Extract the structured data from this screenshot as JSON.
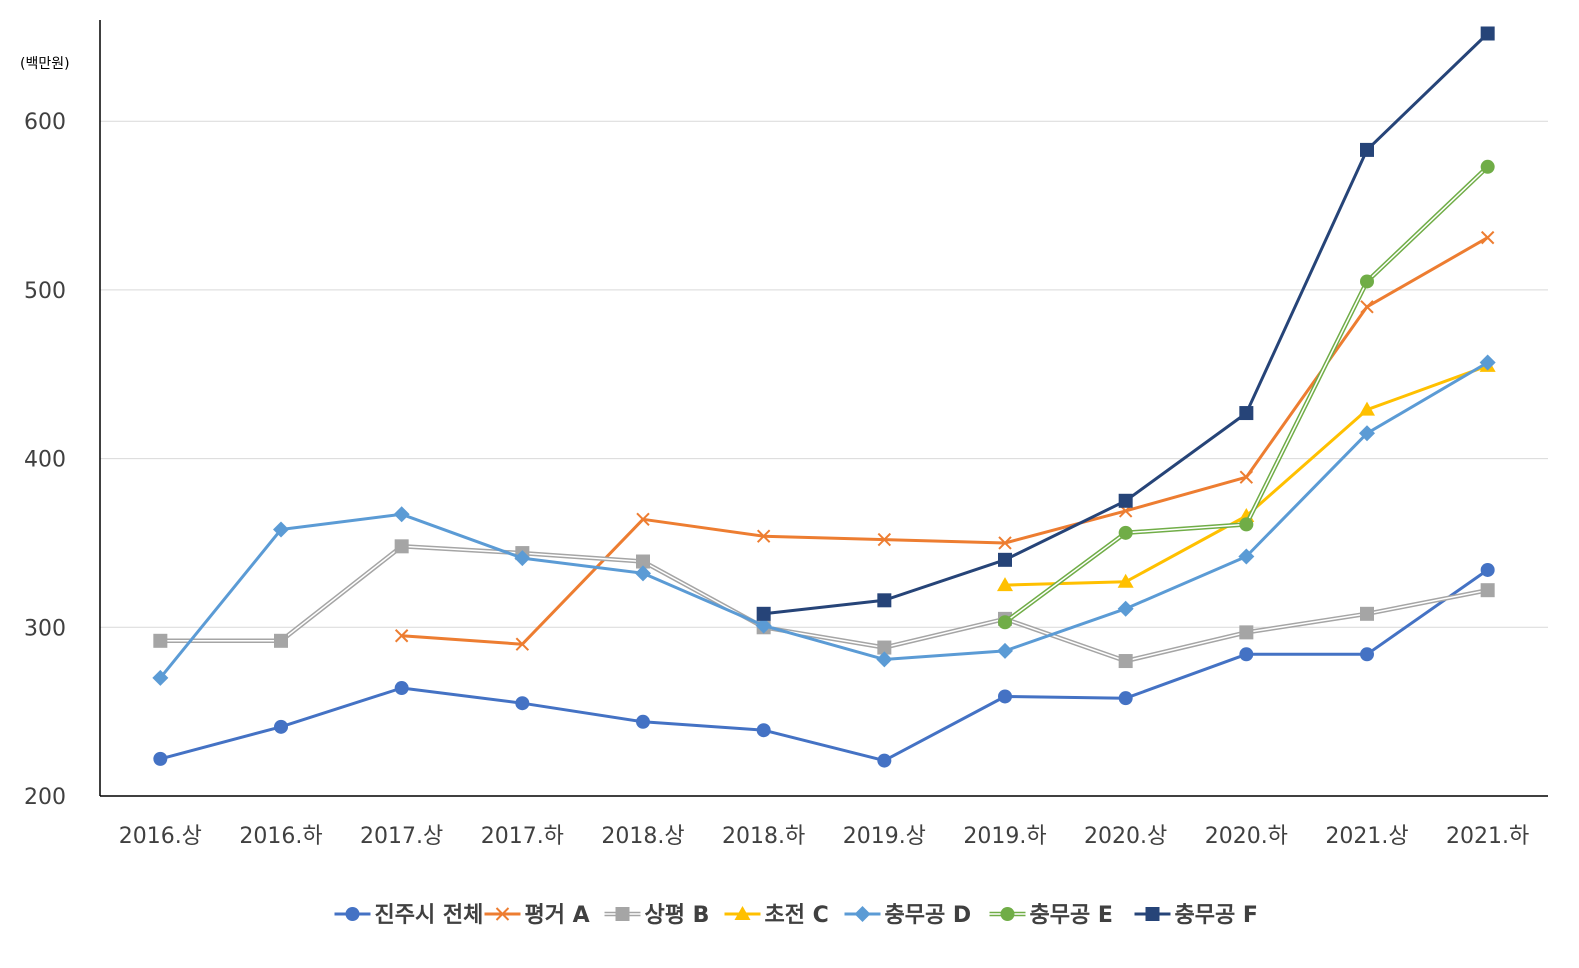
{
  "chart_data": {
    "type": "line",
    "unit_label": "(백만원)",
    "categories": [
      "2016.상",
      "2016.하",
      "2017.상",
      "2017.하",
      "2018.상",
      "2018.하",
      "2019.상",
      "2019.하",
      "2020.상",
      "2020.하",
      "2021.상",
      "2021.하"
    ],
    "ylim": [
      200,
      660
    ],
    "yticks": [
      200,
      300,
      400,
      500,
      600
    ],
    "grid": true,
    "legend_position": "bottom",
    "series": [
      {
        "name": "진주시 전체",
        "color": "#4472C4",
        "marker": "circle",
        "values": [
          222,
          241,
          264,
          255,
          244,
          239,
          221,
          259,
          258,
          284,
          284,
          334
        ]
      },
      {
        "name": "평거 A",
        "color": "#ED7D31",
        "marker": "x",
        "values": [
          null,
          null,
          295,
          290,
          364,
          354,
          352,
          350,
          369,
          389,
          490,
          531
        ]
      },
      {
        "name": "상평 B",
        "color": "#A5A5A5",
        "marker": "square",
        "double": true,
        "values": [
          292,
          292,
          348,
          344,
          339,
          300,
          288,
          305,
          280,
          297,
          308,
          322
        ]
      },
      {
        "name": "초전 C",
        "color": "#FFC000",
        "marker": "triangle",
        "values": [
          null,
          null,
          null,
          null,
          null,
          null,
          null,
          325,
          327,
          366,
          429,
          455
        ]
      },
      {
        "name": "충무공 D",
        "color": "#5B9BD5",
        "marker": "diamond",
        "values": [
          270,
          358,
          367,
          341,
          332,
          301,
          281,
          286,
          311,
          342,
          415,
          457
        ]
      },
      {
        "name": "충무공 E",
        "color": "#70AD47",
        "marker": "circle",
        "double": true,
        "values": [
          null,
          null,
          null,
          null,
          null,
          null,
          null,
          303,
          356,
          361,
          505,
          573
        ]
      },
      {
        "name": "충무공 F",
        "color": "#264478",
        "marker": "square",
        "values": [
          null,
          null,
          null,
          null,
          null,
          308,
          316,
          340,
          375,
          427,
          583,
          652
        ]
      }
    ]
  }
}
